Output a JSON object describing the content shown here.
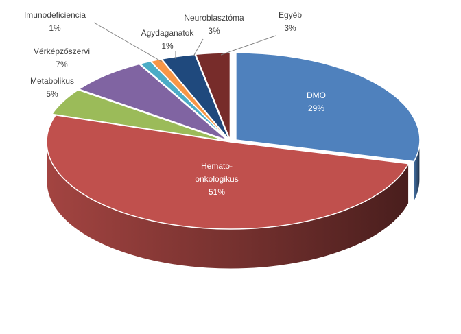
{
  "chart_data": {
    "type": "pie",
    "style": "3d-exploded",
    "slices": [
      {
        "id": "dmo",
        "name": "DMO",
        "label_lines": [
          "DMO"
        ],
        "value": 29,
        "value_text": "29%",
        "color": "#4F81BD",
        "label_inside": true
      },
      {
        "id": "hemato",
        "name": "Hemato-onkologikus",
        "label_lines": [
          "Hemato-",
          "onkologikus"
        ],
        "value": 51,
        "value_text": "51%",
        "color": "#C0504D",
        "label_inside": true
      },
      {
        "id": "metabolikus",
        "name": "Metabolikus",
        "label_lines": [
          "Metabolikus"
        ],
        "value": 5,
        "value_text": "5%",
        "color": "#9BBB59",
        "label_inside": false
      },
      {
        "id": "verkepzoszervi",
        "name": "Vérképzőszervi",
        "label_lines": [
          "Vérképzőszervi"
        ],
        "value": 7,
        "value_text": "7%",
        "color": "#8064A2",
        "label_inside": false
      },
      {
        "id": "immunodeficiencia",
        "name": "Imunodeficiencia",
        "label_lines": [
          "Imunodeficiencia"
        ],
        "value": 1,
        "value_text": "1%",
        "color": "#4BACC6",
        "label_inside": false
      },
      {
        "id": "agydaganatok",
        "name": "Agydaganatok",
        "label_lines": [
          "Agydaganatok"
        ],
        "value": 1,
        "value_text": "1%",
        "color": "#F79646",
        "label_inside": false
      },
      {
        "id": "neuroblasztoma",
        "name": "Neuroblasztóma",
        "label_lines": [
          "Neuroblasztóma"
        ],
        "value": 3,
        "value_text": "3%",
        "color": "#1F497D",
        "label_inside": false
      },
      {
        "id": "egyeb",
        "name": "Egyéb",
        "label_lines": [
          "Egyéb"
        ],
        "value": 3,
        "value_text": "3%",
        "color": "#772C2A",
        "label_inside": false
      }
    ]
  }
}
